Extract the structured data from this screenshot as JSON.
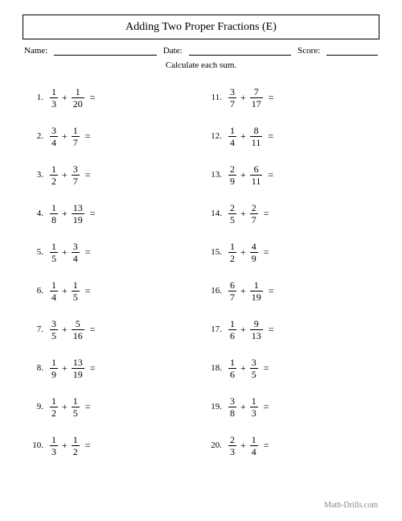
{
  "title": "Adding Two Proper Fractions (E)",
  "header": {
    "name_label": "Name:",
    "date_label": "Date:",
    "score_label": "Score:"
  },
  "instruction": "Calculate each sum.",
  "operator": "+",
  "equals": "=",
  "problems_left": [
    {
      "n": "1.",
      "a_num": "1",
      "a_den": "3",
      "b_num": "1",
      "b_den": "20"
    },
    {
      "n": "2.",
      "a_num": "3",
      "a_den": "4",
      "b_num": "1",
      "b_den": "7"
    },
    {
      "n": "3.",
      "a_num": "1",
      "a_den": "2",
      "b_num": "3",
      "b_den": "7"
    },
    {
      "n": "4.",
      "a_num": "1",
      "a_den": "8",
      "b_num": "13",
      "b_den": "19"
    },
    {
      "n": "5.",
      "a_num": "1",
      "a_den": "5",
      "b_num": "3",
      "b_den": "4"
    },
    {
      "n": "6.",
      "a_num": "1",
      "a_den": "4",
      "b_num": "1",
      "b_den": "5"
    },
    {
      "n": "7.",
      "a_num": "3",
      "a_den": "5",
      "b_num": "5",
      "b_den": "16"
    },
    {
      "n": "8.",
      "a_num": "1",
      "a_den": "9",
      "b_num": "13",
      "b_den": "19"
    },
    {
      "n": "9.",
      "a_num": "1",
      "a_den": "2",
      "b_num": "1",
      "b_den": "5"
    },
    {
      "n": "10.",
      "a_num": "1",
      "a_den": "3",
      "b_num": "1",
      "b_den": "2"
    }
  ],
  "problems_right": [
    {
      "n": "11.",
      "a_num": "3",
      "a_den": "7",
      "b_num": "7",
      "b_den": "17"
    },
    {
      "n": "12.",
      "a_num": "1",
      "a_den": "4",
      "b_num": "8",
      "b_den": "11"
    },
    {
      "n": "13.",
      "a_num": "2",
      "a_den": "9",
      "b_num": "6",
      "b_den": "11"
    },
    {
      "n": "14.",
      "a_num": "2",
      "a_den": "5",
      "b_num": "2",
      "b_den": "7"
    },
    {
      "n": "15.",
      "a_num": "1",
      "a_den": "2",
      "b_num": "4",
      "b_den": "9"
    },
    {
      "n": "16.",
      "a_num": "6",
      "a_den": "7",
      "b_num": "1",
      "b_den": "19"
    },
    {
      "n": "17.",
      "a_num": "1",
      "a_den": "6",
      "b_num": "9",
      "b_den": "13"
    },
    {
      "n": "18.",
      "a_num": "1",
      "a_den": "6",
      "b_num": "3",
      "b_den": "5"
    },
    {
      "n": "19.",
      "a_num": "3",
      "a_den": "8",
      "b_num": "1",
      "b_den": "3"
    },
    {
      "n": "20.",
      "a_num": "2",
      "a_den": "3",
      "b_num": "1",
      "b_den": "4"
    }
  ],
  "footer": "Math-Drills.com"
}
